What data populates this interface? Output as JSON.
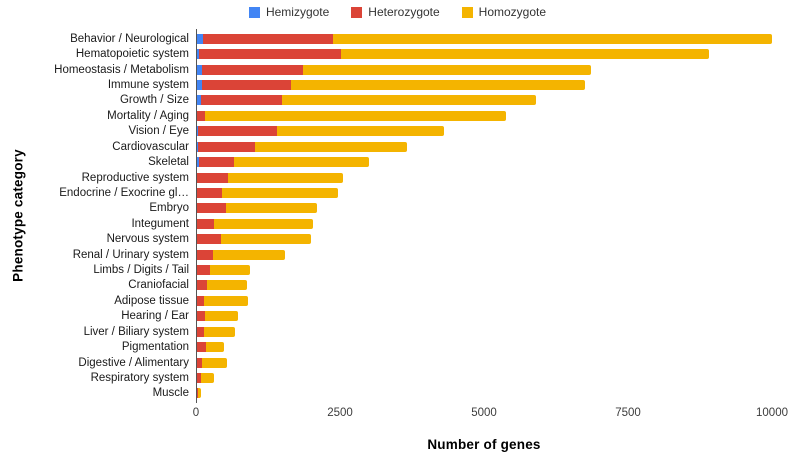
{
  "chart_data": {
    "type": "bar",
    "orientation": "horizontal",
    "stacked": true,
    "title": "",
    "xlabel": "Number of genes",
    "ylabel": "Phenotype category",
    "xlim": [
      0,
      10000
    ],
    "xticks": [
      0,
      2500,
      5000,
      7500,
      10000
    ],
    "grid": false,
    "legend_position": "top",
    "categories": [
      "Behavior / Neurological",
      "Hematopoietic system",
      "Homeostasis / Metabolism",
      "Immune system",
      "Growth / Size",
      "Mortality / Aging",
      "Vision / Eye",
      "Cardiovascular",
      "Skeletal",
      "Reproductive system",
      "Endocrine / Exocrine gl…",
      "Embryo",
      "Integument",
      "Nervous system",
      "Renal / Urinary system",
      "Limbs / Digits / Tail",
      "Craniofacial",
      "Adipose tissue",
      "Hearing / Ear",
      "Liver / Biliary system",
      "Pigmentation",
      "Digestive / Alimentary",
      "Respiratory system",
      "Muscle"
    ],
    "series": [
      {
        "name": "Hemizygote",
        "color": "#4285F4",
        "values": [
          120,
          60,
          100,
          100,
          80,
          0,
          30,
          30,
          50,
          10,
          10,
          10,
          10,
          10,
          10,
          0,
          0,
          0,
          0,
          0,
          20,
          0,
          0,
          0
        ]
      },
      {
        "name": "Heterozygote",
        "color": "#DB4437",
        "values": [
          2250,
          2450,
          1750,
          1550,
          1420,
          150,
          1380,
          1000,
          610,
          550,
          440,
          510,
          300,
          430,
          280,
          240,
          190,
          140,
          160,
          140,
          160,
          100,
          90,
          30
        ]
      },
      {
        "name": "Homozygote",
        "color": "#F4B400",
        "values": [
          7630,
          6390,
          5000,
          5100,
          4400,
          5230,
          2890,
          2630,
          2340,
          2000,
          2010,
          1580,
          1730,
          1550,
          1260,
          700,
          700,
          760,
          570,
          540,
          310,
          440,
          220,
          60
        ]
      }
    ]
  }
}
